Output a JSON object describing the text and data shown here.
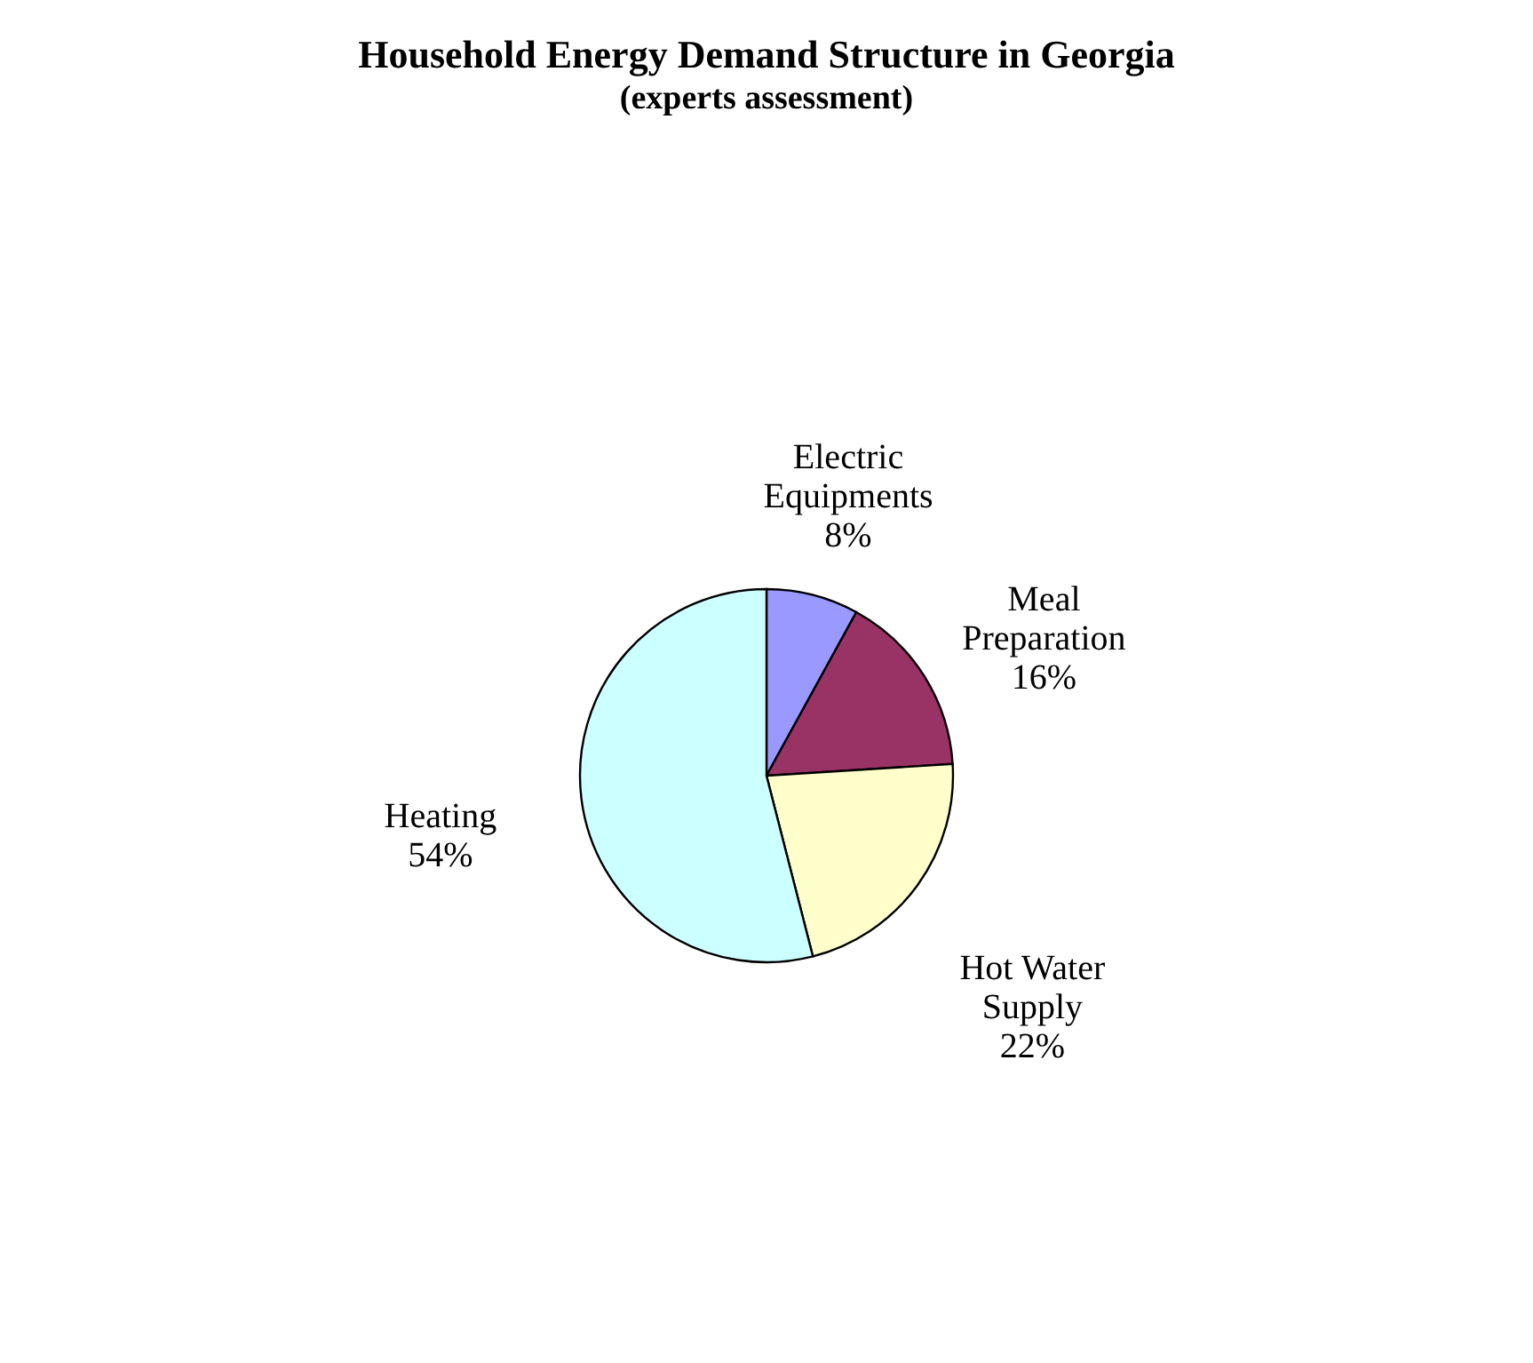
{
  "chart_data": {
    "type": "pie",
    "title": "Household Energy Demand Structure in Georgia",
    "subtitle": "(experts assessment)",
    "categories": [
      "Electric Equipments",
      "Meal Preparation",
      "Hot Water Supply",
      "Heating"
    ],
    "values": [
      8,
      16,
      22,
      54
    ],
    "value_labels": [
      "8%",
      "16%",
      "22%",
      "54%"
    ],
    "colors": [
      "#9999ff",
      "#993366",
      "#ffffcc",
      "#ccffff"
    ],
    "legend": false
  }
}
